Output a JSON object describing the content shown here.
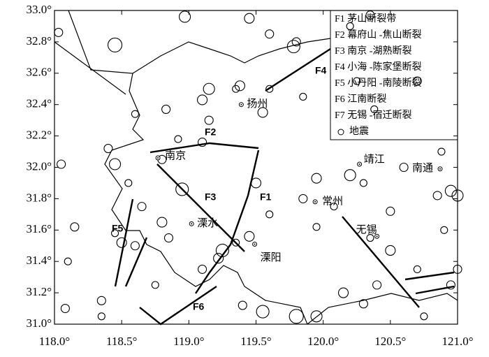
{
  "chart_data": {
    "type": "scatter",
    "xlim": [
      118,
      121
    ],
    "ylim": [
      31,
      33
    ],
    "xticks": [
      {
        "value": 118,
        "label": "118.0°"
      },
      {
        "value": 118.5,
        "label": "118.5°"
      },
      {
        "value": 119,
        "label": "119.0°"
      },
      {
        "value": 119.5,
        "label": "119.5°"
      },
      {
        "value": 120,
        "label": "120.0°"
      },
      {
        "value": 120.5,
        "label": "120.5°"
      },
      {
        "value": 121,
        "label": "121.0°"
      }
    ],
    "yticks": [
      {
        "value": 31,
        "label": "31.0°"
      },
      {
        "value": 31.2,
        "label": "31.2°"
      },
      {
        "value": 31.4,
        "label": "31.4°"
      },
      {
        "value": 31.6,
        "label": "31.6°"
      },
      {
        "value": 31.8,
        "label": "31.8°"
      },
      {
        "value": 32,
        "label": "32.0°"
      },
      {
        "value": 32.2,
        "label": "32.2°"
      },
      {
        "value": 32.4,
        "label": "32.4°"
      },
      {
        "value": 32.6,
        "label": "32.6°"
      },
      {
        "value": 32.8,
        "label": "32.8°"
      },
      {
        "value": 33,
        "label": "33.0°"
      }
    ],
    "fault_names": [
      "F1 茅山断裂带",
      "F2 幕府山 -焦山断裂",
      "F3 南京 -湖熟断裂",
      "F4 小海 -陈家堡断裂",
      "F5 小丹阳 -南陵断裂",
      "F6 江南断裂",
      "F7 无锡 -宿迁断裂"
    ],
    "fault_labels": [
      "F1",
      "F2",
      "F3",
      "F4",
      "F5",
      "F6",
      "F7"
    ],
    "cities": [
      {
        "label": "扬州",
        "x": 119.39,
        "y": 32.4
      },
      {
        "label": "南京",
        "x": 118.77,
        "y": 32.06
      },
      {
        "label": "溧水",
        "x": 119.02,
        "y": 31.64
      },
      {
        "label": "常州",
        "x": 119.94,
        "y": 31.78
      },
      {
        "label": "靖江",
        "x": 120.27,
        "y": 32.02
      },
      {
        "label": "南通",
        "x": 120.87,
        "y": 31.99
      },
      {
        "label": "无锡",
        "x": 120.4,
        "y": 31.56
      },
      {
        "label": "溧阳",
        "x": 119.49,
        "y": 31.51
      }
    ],
    "series": [
      {
        "name": "地震",
        "color": "#000000",
        "x": [
          118.03,
          118.45,
          118.97,
          119.45,
          119.6,
          119.78,
          119.8,
          120.2,
          120.35,
          119.15,
          119.1,
          119.38,
          119.35,
          119.55,
          119.15,
          118.83,
          118.6,
          119.1,
          118.92,
          118.8,
          118.4,
          118.45,
          118.55,
          118.95,
          118.65,
          118.8,
          118.85,
          118.5,
          118.45,
          118.6,
          119.25,
          119.22,
          119.35,
          119.45,
          119.6,
          119.5,
          119.95,
          120.2,
          120.3,
          120.08,
          119.85,
          119.95,
          120.5,
          120.5,
          120.35,
          120.85,
          120.95,
          121.0,
          120.9,
          120.7,
          120.4,
          120.3,
          120.15,
          119.95,
          119.8,
          119.55,
          119.4,
          119.1,
          118.75,
          118.35,
          118.08,
          118.1,
          118.05,
          118.15,
          118.35,
          120.95,
          120.88,
          120.6,
          119.6,
          119.85,
          120.38,
          120.7,
          120.75,
          121.0,
          120.25
        ],
        "values": [
          32.86,
          32.78,
          32.96,
          32.95,
          32.85,
          32.77,
          32.8,
          32.9,
          32.97,
          32.5,
          32.43,
          32.52,
          32.5,
          32.35,
          32.3,
          32.37,
          32.34,
          32.16,
          32.18,
          32.05,
          32.12,
          32.02,
          31.9,
          31.86,
          31.75,
          31.65,
          31.55,
          31.52,
          31.58,
          31.5,
          31.47,
          31.42,
          31.52,
          31.56,
          31.7,
          31.9,
          31.93,
          31.95,
          31.9,
          31.75,
          31.8,
          31.62,
          31.72,
          31.47,
          31.55,
          31.82,
          31.85,
          31.82,
          31.6,
          31.35,
          31.25,
          31.13,
          31.2,
          31.05,
          31.05,
          31.08,
          31.12,
          31.35,
          31.25,
          31.15,
          31.1,
          31.4,
          32.02,
          31.62,
          31.05,
          31.25,
          32.1,
          32.0,
          32.5,
          32.45,
          32.37,
          32.55,
          31.05,
          31.35,
          32.55
        ],
        "sizes": [
          6,
          10,
          8,
          7,
          6,
          9,
          6,
          5,
          6,
          8,
          7,
          7,
          5,
          7,
          6,
          6,
          5,
          6,
          5,
          6,
          6,
          8,
          5,
          9,
          6,
          7,
          6,
          7,
          5,
          6,
          9,
          7,
          5,
          7,
          5,
          7,
          7,
          8,
          5,
          5,
          6,
          5,
          6,
          7,
          5,
          6,
          8,
          8,
          5,
          5,
          6,
          6,
          7,
          8,
          10,
          9,
          6,
          6,
          5,
          6,
          6,
          5,
          6,
          6,
          5,
          6,
          5,
          6,
          5,
          5,
          5,
          6,
          5,
          6,
          5
        ]
      }
    ]
  }
}
